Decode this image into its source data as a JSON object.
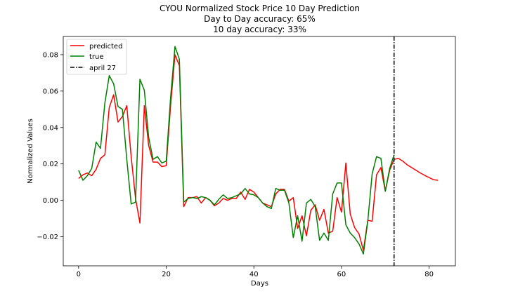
{
  "chart_data": {
    "type": "line",
    "title": [
      "CYOU Normalized Stock Price 10 Day Prediction",
      "Day to Day accuracy: 65%",
      "10 day accuracy: 33%"
    ],
    "xlabel": "Days",
    "ylabel": "Normalized Values",
    "xlim": [
      -3.5,
      86
    ],
    "ylim": [
      -0.036,
      0.09
    ],
    "xticks": [
      0,
      20,
      40,
      60,
      80
    ],
    "yticks": [
      -0.02,
      0.0,
      0.02,
      0.04,
      0.06,
      0.08
    ],
    "ytick_labels": [
      "−0.02",
      "0.00",
      "0.02",
      "0.04",
      "0.06",
      "0.08"
    ],
    "grid": false,
    "legend_position": "top-left",
    "series": [
      {
        "name": "predicted",
        "color": "#ff0000",
        "x": [
          0,
          1,
          2,
          3,
          4,
          5,
          6,
          7,
          8,
          9,
          10,
          11,
          12,
          13,
          14,
          15,
          16,
          17,
          18,
          19,
          20,
          21,
          22,
          23,
          24,
          25,
          26,
          27,
          28,
          29,
          30,
          31,
          32,
          33,
          34,
          35,
          36,
          37,
          38,
          39,
          40,
          41,
          42,
          43,
          44,
          45,
          46,
          47,
          48,
          49,
          50,
          51,
          52,
          53,
          54,
          55,
          56,
          57,
          58,
          59,
          60,
          61,
          62,
          63,
          64,
          65,
          66,
          67,
          68,
          69,
          70,
          71,
          72,
          73,
          74,
          75,
          76,
          77,
          78,
          79,
          80,
          81,
          82
        ],
        "y": [
          0.012,
          0.014,
          0.015,
          0.0135,
          0.017,
          0.023,
          0.025,
          0.051,
          0.058,
          0.043,
          0.046,
          0.052,
          0.024,
          0.001,
          -0.0125,
          0.052,
          0.03,
          0.021,
          0.021,
          0.0185,
          0.019,
          0.052,
          0.08,
          0.074,
          -0.0035,
          0.0015,
          0.0015,
          0.002,
          -0.0015,
          0.0015,
          0.0,
          -0.003,
          -0.0015,
          0.001,
          0.0,
          0.001,
          0.001,
          0.0045,
          0.0005,
          0.006,
          0.0045,
          0.0015,
          -0.0015,
          -0.0025,
          -0.0035,
          0.0035,
          0.006,
          0.006,
          -0.0005,
          0.0015,
          -0.0155,
          -0.0085,
          -0.0195,
          -0.0055,
          -0.0025,
          -0.011,
          -0.005,
          -0.018,
          -0.017,
          0.0015,
          -0.0065,
          0.0205,
          -0.0075,
          -0.015,
          -0.0185,
          -0.0275,
          -0.011,
          -0.0115,
          0.014,
          0.018,
          0.005,
          0.0165,
          0.0225,
          0.023,
          0.0215,
          0.0195,
          0.018,
          0.0165,
          0.015,
          0.0137,
          0.0125,
          0.0113,
          0.011
        ]
      },
      {
        "name": "true",
        "color": "#008000",
        "x": [
          0,
          1,
          2,
          3,
          4,
          5,
          6,
          7,
          8,
          9,
          10,
          11,
          12,
          13,
          14,
          15,
          16,
          17,
          18,
          19,
          20,
          21,
          22,
          23,
          24,
          25,
          26,
          27,
          28,
          29,
          30,
          31,
          32,
          33,
          34,
          35,
          36,
          37,
          38,
          39,
          40,
          41,
          42,
          43,
          44,
          45,
          46,
          47,
          48,
          49,
          50,
          51,
          52,
          53,
          54,
          55,
          56,
          57,
          58,
          59,
          60,
          61,
          62,
          63,
          64,
          65,
          66,
          67,
          68,
          69,
          70,
          71,
          72
        ],
        "y": [
          0.0165,
          0.011,
          0.0135,
          0.0175,
          0.032,
          0.0285,
          0.0535,
          0.0685,
          0.064,
          0.0515,
          0.05,
          0.0225,
          -0.002,
          -0.001,
          0.0665,
          0.0605,
          0.0345,
          0.0225,
          0.024,
          0.0205,
          0.0215,
          0.0565,
          0.0845,
          0.0775,
          -0.001,
          0.001,
          0.0015,
          0.001,
          0.002,
          0.0015,
          0.0,
          -0.0025,
          0.0005,
          0.003,
          0.001,
          0.0015,
          0.0025,
          0.0035,
          0.0065,
          0.0035,
          0.003,
          0.0015,
          -0.0015,
          -0.0035,
          -0.0045,
          0.0065,
          0.0055,
          0.0055,
          -0.0015,
          -0.0205,
          -0.0085,
          -0.0225,
          -0.0015,
          0.0005,
          -0.0035,
          -0.022,
          -0.018,
          -0.022,
          0.0035,
          0.0095,
          0.0095,
          -0.0135,
          -0.018,
          -0.0205,
          -0.024,
          -0.0295,
          -0.0115,
          0.0145,
          0.024,
          0.023,
          0.005,
          0.0175,
          0.025
        ]
      }
    ],
    "vline": {
      "name": "april 27",
      "x": 72,
      "color": "#000000",
      "style": "dash-dot"
    }
  }
}
